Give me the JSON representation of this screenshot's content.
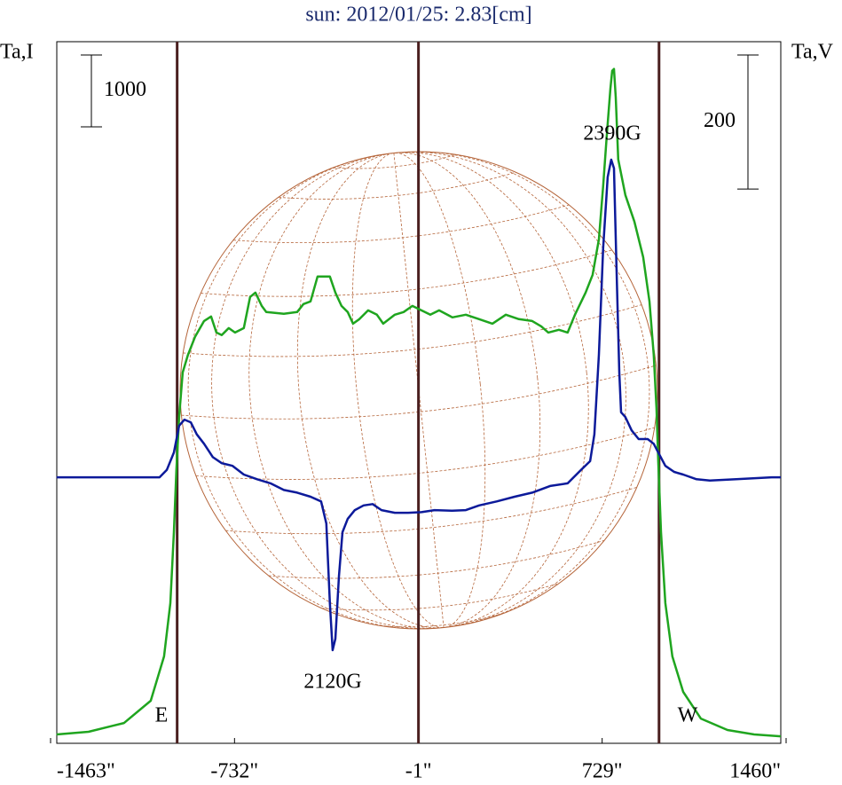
{
  "chart_data": {
    "type": "line",
    "title": "sun: 2012/01/25: 2.83[cm]",
    "y_label": "Ta,I",
    "y2_label": "Ta,V",
    "xlim": [
      -1463,
      1460
    ],
    "xticks": [
      {
        "value": -1463,
        "label": "-1463\""
      },
      {
        "value": -732,
        "label": "-732\""
      },
      {
        "value": -1,
        "label": "-1\""
      },
      {
        "value": 729,
        "label": "729\""
      },
      {
        "value": 1460,
        "label": "1460\""
      }
    ],
    "ylim": [
      -123,
      9642
    ],
    "y2lim": [
      -397,
      650
    ],
    "scale_bars": [
      {
        "value": 1000,
        "axis": "y"
      },
      {
        "value": 200,
        "axis": "y2"
      }
    ],
    "markers": [
      -960,
      -1,
      955
    ],
    "annotations": [
      "E",
      "W",
      "2390G",
      "2120G"
    ],
    "series": [
      {
        "name": "I",
        "color": "#1fa51f",
        "axis": "y",
        "x": [
          -1439,
          -1312,
          -1171,
          -1065,
          -1012,
          -987,
          -973,
          -963,
          -952,
          -938,
          -917,
          -889,
          -853,
          -825,
          -804,
          -783,
          -755,
          -730,
          -695,
          -670,
          -649,
          -624,
          -606,
          -536,
          -483,
          -458,
          -430,
          -402,
          -353,
          -331,
          -307,
          -282,
          -261,
          -236,
          -201,
          -166,
          -141,
          -95,
          -60,
          -25,
          11,
          46,
          81,
          134,
          187,
          240,
          293,
          346,
          398,
          451,
          487,
          515,
          557,
          592,
          621,
          663,
          691,
          716,
          733,
          748,
          762,
          769,
          776,
          783,
          793,
          821,
          857,
          892,
          917,
          934,
          945,
          952,
          963,
          980,
          1008,
          1051,
          1121,
          1227,
          1333,
          1439
        ],
        "values": [
          0,
          37,
          160,
          469,
          1087,
          1828,
          2816,
          3681,
          4421,
          5039,
          5286,
          5533,
          5755,
          5817,
          5594,
          5558,
          5656,
          5594,
          5656,
          6089,
          6150,
          5965,
          5879,
          5854,
          5879,
          5990,
          6027,
          6373,
          6373,
          6150,
          5965,
          5879,
          5718,
          5780,
          5903,
          5842,
          5718,
          5842,
          5879,
          5965,
          5903,
          5842,
          5903,
          5805,
          5842,
          5780,
          5718,
          5842,
          5780,
          5755,
          5681,
          5594,
          5632,
          5594,
          5842,
          6150,
          6397,
          6891,
          7632,
          8373,
          8991,
          9238,
          9263,
          8867,
          8003,
          7509,
          7138,
          6644,
          6027,
          5286,
          4545,
          3804,
          2816,
          1828,
          1087,
          593,
          222,
          62,
          0,
          -25
        ]
      },
      {
        "name": "V",
        "color": "#0c1a9a",
        "axis": "y2",
        "x": [
          -1439,
          -1030,
          -1001,
          -973,
          -952,
          -931,
          -906,
          -882,
          -853,
          -818,
          -783,
          -740,
          -695,
          -642,
          -589,
          -536,
          -483,
          -430,
          -388,
          -367,
          -353,
          -342,
          -331,
          -317,
          -303,
          -282,
          -254,
          -219,
          -183,
          -148,
          -95,
          -42,
          11,
          63,
          134,
          187,
          240,
          310,
          381,
          451,
          522,
          592,
          645,
          681,
          698,
          716,
          733,
          751,
          765,
          776,
          786,
          797,
          804,
          821,
          846,
          874,
          910,
          934,
          952,
          980,
          1015,
          1051,
          1104,
          1157,
          1262,
          1403,
          1439
        ],
        "values": [
          0,
          0,
          11,
          37,
          77,
          86,
          82,
          64,
          50,
          30,
          21,
          17,
          4,
          -3,
          -9,
          -19,
          -23,
          -29,
          -36,
          -69,
          -188,
          -258,
          -241,
          -148,
          -82,
          -62,
          -49,
          -42,
          -40,
          -49,
          -53,
          -53,
          -52,
          -49,
          -50,
          -49,
          -42,
          -36,
          -29,
          -23,
          -13,
          -9,
          11,
          24,
          64,
          183,
          342,
          448,
          474,
          461,
          315,
          156,
          97,
          90,
          70,
          57,
          57,
          50,
          37,
          17,
          8,
          4,
          -3,
          -5,
          -3,
          0,
          0
        ]
      }
    ]
  }
}
